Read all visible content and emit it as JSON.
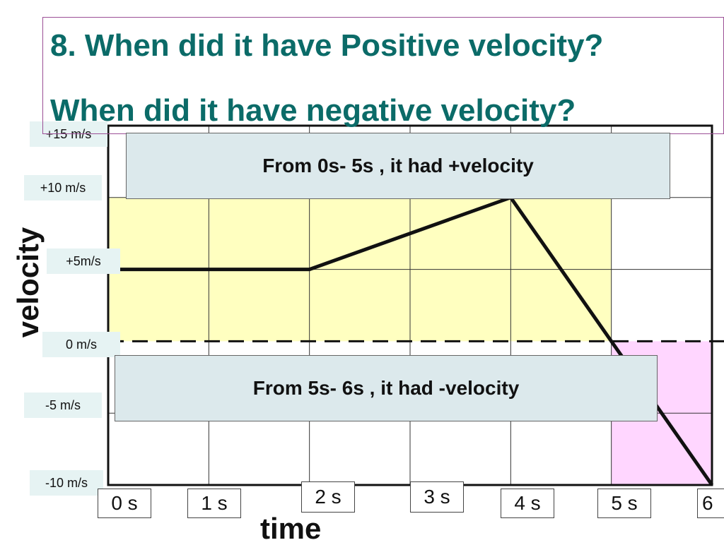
{
  "chart_data": {
    "type": "line",
    "title": "8. When did it have Positive velocity?",
    "subtitle": "When did it have negative velocity?",
    "xlabel": "time",
    "ylabel": "velocity",
    "xlim": [
      0,
      6
    ],
    "ylim": [
      -10,
      15
    ],
    "x_tick_labels": [
      "0 s",
      "1 s",
      "2 s",
      "3 s",
      "4 s",
      "5 s",
      "6"
    ],
    "y_tick_labels": [
      {
        "value": 15,
        "label": "+15 m/s"
      },
      {
        "value": 10,
        "label": "+10 m/s"
      },
      {
        "value": 5,
        "label": "+5m/s"
      },
      {
        "value": 0,
        "label": "0 m/s"
      },
      {
        "value": -5,
        "label": "-5 m/s"
      },
      {
        "value": -10,
        "label": "-10 m/s"
      }
    ],
    "series": [
      {
        "x": [
          0,
          2,
          4,
          6
        ],
        "y": [
          5,
          5,
          10,
          -10
        ]
      }
    ],
    "shaded_regions": [
      {
        "x": [
          0,
          5
        ],
        "y": [
          0,
          10
        ],
        "color": "#ffffc0"
      },
      {
        "x": [
          5,
          6
        ],
        "y": [
          -10,
          0
        ],
        "color": "#ffd6ff"
      }
    ],
    "callouts": [
      {
        "text": "From 0s- 5s , it had +velocity"
      },
      {
        "text": "From 5s- 6s , it had -velocity"
      }
    ],
    "grid": true,
    "zero_line": "dashed"
  }
}
